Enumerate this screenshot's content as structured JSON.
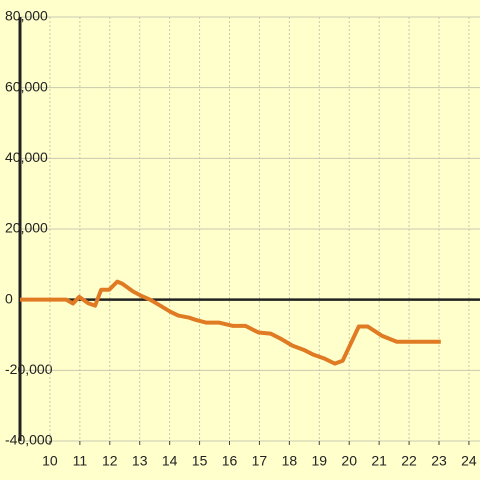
{
  "chart_data": {
    "type": "line",
    "x": [
      9,
      10.54,
      10.77,
      10.98,
      11.28,
      11.51,
      11.71,
      11.98,
      12.25,
      12.42,
      12.78,
      13.05,
      13.35,
      13.69,
      14.02,
      14.29,
      14.66,
      14.86,
      15.23,
      15.66,
      16.1,
      16.53,
      16.97,
      17.37,
      17.7,
      18.1,
      18.48,
      18.81,
      19.18,
      19.52,
      19.78,
      20.32,
      20.62,
      21.09,
      21.59,
      23.06
    ],
    "series": [
      {
        "color": "#e07b24",
        "values": [
          0,
          0,
          -1100,
          800,
          -1000,
          -1700,
          2800,
          2800,
          5100,
          4500,
          2300,
          1100,
          0,
          -1700,
          -3400,
          -4500,
          -5100,
          -5700,
          -6500,
          -6500,
          -7400,
          -7400,
          -9300,
          -9600,
          -11000,
          -13000,
          -14200,
          -15600,
          -16700,
          -18100,
          -17300,
          -7600,
          -7600,
          -10200,
          -11900,
          -11900
        ]
      }
    ],
    "xlim": [
      9,
      24.37
    ],
    "xticks": [
      10,
      11,
      12,
      13,
      14,
      15,
      16,
      17,
      18,
      19,
      20,
      21,
      22,
      23,
      24
    ],
    "ylim": [
      -40000,
      80000
    ],
    "yticks": [
      {
        "value": -40000,
        "label": "-40,000"
      },
      {
        "value": -20000,
        "label": "-20,000"
      },
      0,
      {
        "value": 20000,
        "label": "20,000"
      },
      {
        "value": 40000,
        "label": "40,000"
      },
      {
        "value": 60000,
        "label": "60,000"
      },
      {
        "value": 80000,
        "label": "80,000"
      }
    ],
    "grid": true
  }
}
